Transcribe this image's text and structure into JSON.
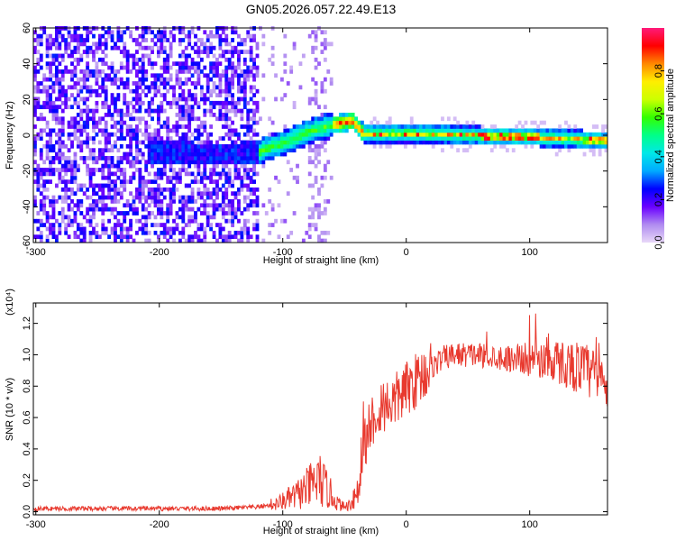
{
  "title": "GN05.2026.057.22.49.E13",
  "chart_data": [
    {
      "type": "heatmap",
      "xlabel": "Height of straight line (km)",
      "ylabel": "Frequency (Hz)",
      "xlim": [
        -302,
        163
      ],
      "ylim": [
        -60,
        60
      ],
      "xticks": [
        -300,
        -200,
        -100,
        0,
        100
      ],
      "yticks": [
        -60,
        -40,
        -20,
        0,
        20,
        40,
        60
      ],
      "colorbar": {
        "label": "Normalized spectral amplitude",
        "range": [
          0,
          1
        ],
        "ticks": [
          "0.0",
          "0.2",
          "0.4",
          "0.6",
          "0.8"
        ],
        "colors": [
          "#e8d8f8",
          "#b08cf0",
          "#6a00ff",
          "#0000ff",
          "#00aaff",
          "#00e8e8",
          "#00ff88",
          "#33ff00",
          "#ccff00",
          "#ffee00",
          "#ff8800",
          "#ff0000",
          "#ff1a7a"
        ]
      },
      "ridge": [
        {
          "x": -200,
          "f": -10
        },
        {
          "x": -150,
          "f": -12
        },
        {
          "x": -120,
          "f": -10
        },
        {
          "x": -100,
          "f": -5
        },
        {
          "x": -80,
          "f": 1
        },
        {
          "x": -60,
          "f": 5
        },
        {
          "x": -45,
          "f": 7
        },
        {
          "x": -35,
          "f": 0
        },
        {
          "x": 0,
          "f": 0
        },
        {
          "x": 50,
          "f": -1
        },
        {
          "x": 100,
          "f": -2
        },
        {
          "x": 160,
          "f": -4
        }
      ],
      "noise_edge_x": -120
    },
    {
      "type": "line",
      "xlabel": "Height of straight line (km)",
      "ylabel": "SNR (10 * v/v)",
      "y_multiplier": "(x10⁴)",
      "xlim": [
        -302,
        163
      ],
      "ylim": [
        -0.02,
        1.33
      ],
      "xticks": [
        -300,
        -200,
        -100,
        0,
        100
      ],
      "yticks": [
        "0.0",
        "0.2",
        "0.4",
        "0.6",
        "0.8",
        "1.0",
        "1.2"
      ],
      "color": "#e8392e",
      "series": [
        {
          "x": [
            -302,
            -250,
            -200,
            -150,
            -120,
            -105,
            -90,
            -80,
            -75,
            -70,
            -65,
            -60,
            -55,
            -50,
            -45,
            -40,
            -35,
            -30,
            -25,
            -20,
            -10,
            0,
            10,
            20,
            30,
            40,
            60,
            80,
            100,
            120,
            140,
            150,
            160,
            163
          ],
          "values": [
            0.02,
            0.02,
            0.02,
            0.02,
            0.03,
            0.05,
            0.1,
            0.15,
            0.18,
            0.2,
            0.15,
            0.1,
            0.05,
            0.03,
            0.05,
            0.15,
            0.4,
            0.55,
            0.62,
            0.68,
            0.7,
            0.78,
            0.85,
            0.92,
            0.98,
            1.0,
            1.0,
            0.98,
            0.97,
            0.96,
            0.92,
            0.88,
            0.82,
            0.8
          ]
        }
      ]
    }
  ]
}
